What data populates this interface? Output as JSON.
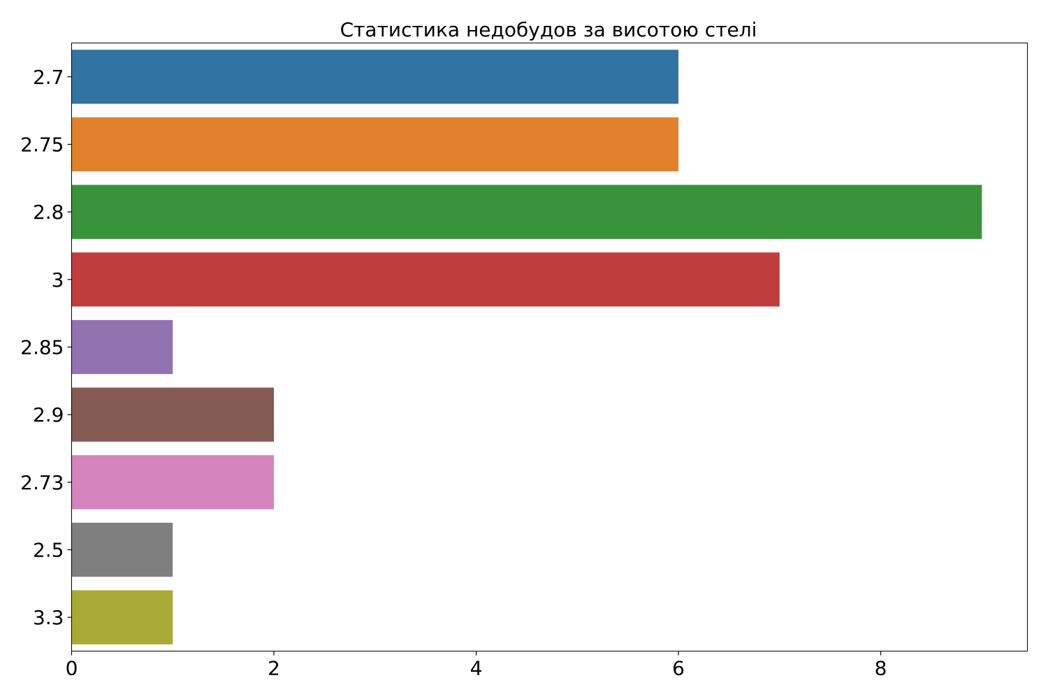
{
  "chart_data": {
    "type": "bar",
    "orientation": "horizontal",
    "title": "Статистика недобудов за висотою стелі",
    "xlabel": "",
    "ylabel": "",
    "categories": [
      "2.7",
      "2.75",
      "2.8",
      "3",
      "2.85",
      "2.9",
      "2.73",
      "2.5",
      "3.3"
    ],
    "values": [
      6,
      6,
      9,
      7,
      1,
      2,
      2,
      1,
      1
    ],
    "colors": [
      "#3274a1",
      "#e1812c",
      "#3a923a",
      "#c03d3e",
      "#9372b2",
      "#845b53",
      "#d684bd",
      "#7f7f7f",
      "#a9aa35"
    ],
    "xlim": [
      0,
      9.45
    ],
    "xticks": [
      0,
      2,
      4,
      6,
      8
    ],
    "grid": false,
    "legend": "none"
  }
}
